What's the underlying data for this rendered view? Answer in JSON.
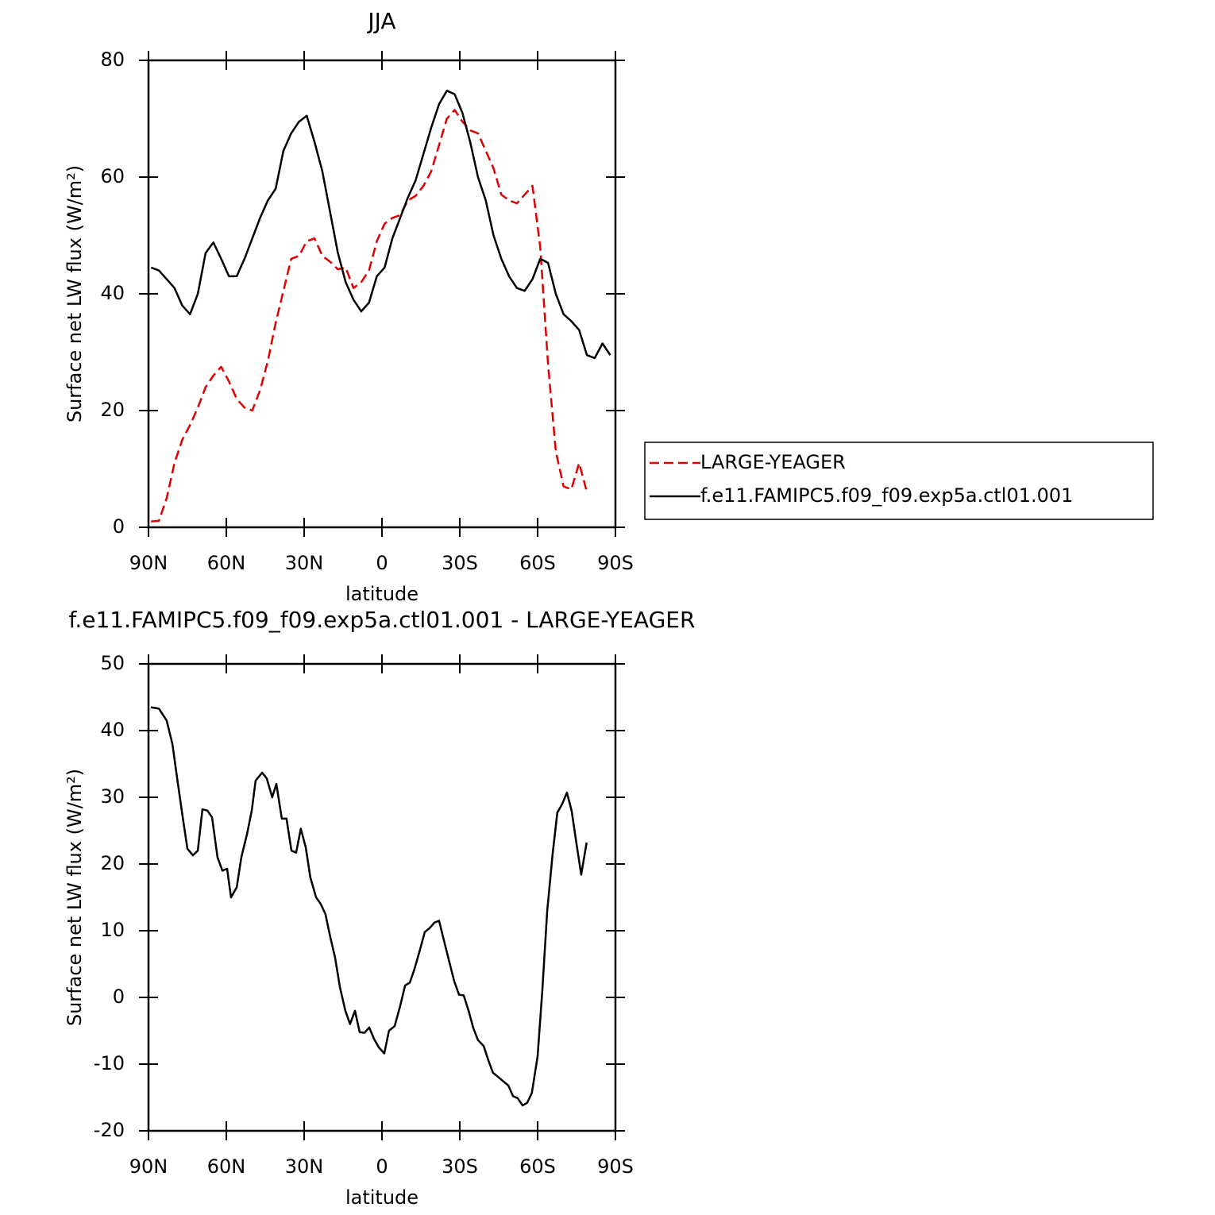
{
  "chart_data": [
    {
      "type": "line",
      "title": "JJA",
      "xlabel": "latitude",
      "ylabel": "Surface net LW flux (W/m²)",
      "xlim": [
        90,
        -90
      ],
      "ylim": [
        0,
        80
      ],
      "xticks": [
        {
          "value": 90,
          "label": "90N"
        },
        {
          "value": 60,
          "label": "60N"
        },
        {
          "value": 30,
          "label": "30N"
        },
        0,
        {
          "value": -30,
          "label": "30S"
        },
        {
          "value": -60,
          "label": "60S"
        },
        {
          "value": -90,
          "label": "90S"
        }
      ],
      "yticks": [
        0,
        20,
        40,
        60,
        80
      ],
      "legend": "right",
      "x": [
        89,
        86,
        83,
        80,
        77,
        74,
        71,
        68,
        65,
        62,
        59,
        56,
        53,
        50,
        47,
        44,
        41,
        38,
        35,
        32,
        29,
        26,
        23,
        20,
        17,
        14,
        11,
        8,
        5,
        2,
        -1,
        -4,
        -7,
        -10,
        -13,
        -16,
        -19,
        -22,
        -25,
        -28,
        -31,
        -34,
        -37,
        -40,
        -43,
        -46,
        -49,
        -52,
        -55,
        -58,
        -61,
        -64,
        -67,
        -70,
        -73,
        -76,
        -79,
        -82,
        -85,
        -88
      ],
      "series": [
        {
          "name": "LARGE-YEAGER",
          "color": "#e00000",
          "linestyle": "dashed",
          "values": [
            1,
            1.1,
            5,
            11,
            15,
            17.5,
            20.5,
            24,
            26,
            27.5,
            25,
            22,
            20.5,
            20,
            23.5,
            28.5,
            35,
            40.5,
            46,
            46.5,
            49,
            49.5,
            46.5,
            45.5,
            44.2,
            44.5,
            41,
            42,
            44,
            49,
            52,
            53,
            53.5,
            56,
            56.8,
            58.5,
            61,
            65.5,
            70,
            71.5,
            69.5,
            68,
            67.5,
            64.5,
            61.5,
            57,
            56,
            55.5,
            57,
            58.5,
            48,
            28,
            13,
            7,
            6.5,
            11,
            6,
            null,
            null,
            null
          ]
        },
        {
          "name": "f.e11.FAMIPC5.f09_f09.exp5a.ctl01.001",
          "color": "#000000",
          "linestyle": "solid",
          "values": [
            44.5,
            44,
            42.5,
            41,
            38,
            36.5,
            40,
            47,
            48.8,
            46,
            43,
            43,
            46,
            49.5,
            53,
            56,
            58,
            64.5,
            67.5,
            69.5,
            70.5,
            66,
            61,
            54,
            47,
            42,
            39,
            37,
            38.5,
            43,
            44.5,
            49.5,
            53,
            56.5,
            59.5,
            64,
            68.5,
            72.5,
            74.8,
            74.2,
            71,
            66,
            60,
            56,
            50,
            46,
            43,
            41,
            40.5,
            42.5,
            46,
            45.3,
            40,
            36.5,
            35.3,
            33.8,
            29.5,
            29,
            31.5,
            29.5
          ]
        }
      ]
    },
    {
      "type": "line",
      "title": "f.e11.FAMIPC5.f09_f09.exp5a.ctl01.001 - LARGE-YEAGER",
      "xlabel": "latitude",
      "ylabel": "Surface net LW flux (W/m²)",
      "xlim": [
        90,
        -90
      ],
      "ylim": [
        -20,
        50
      ],
      "xticks": [
        {
          "value": 90,
          "label": "90N"
        },
        {
          "value": 60,
          "label": "60N"
        },
        {
          "value": 30,
          "label": "30N"
        },
        0,
        {
          "value": -30,
          "label": "30S"
        },
        {
          "value": -60,
          "label": "60S"
        },
        {
          "value": -90,
          "label": "90S"
        }
      ],
      "yticks": [
        -20,
        -10,
        0,
        10,
        20,
        30,
        40,
        50
      ],
      "color": "#000000",
      "x": [
        89.1,
        86,
        83,
        80.8,
        79,
        76.8,
        75,
        72.9,
        71,
        69.2,
        67.3,
        65.5,
        63.4,
        61.5,
        59.7,
        58.2,
        56,
        54.2,
        52,
        50.2,
        48.7,
        46.2,
        44.4,
        42.3,
        40.7,
        38.6,
        36.8,
        34.9,
        33.1,
        31.3,
        29.4,
        27.6,
        25.4,
        23.6,
        21.8,
        19.9,
        18.1,
        16.2,
        14.1,
        12.3,
        10.4,
        8.6,
        6.7,
        4.9,
        3.1,
        1.2,
        -0.9,
        -2.7,
        -4.9,
        -7,
        -8.9,
        -10.7,
        -12.5,
        -14.7,
        -16.5,
        -18.4,
        -20.2,
        -22,
        -23.9,
        -25.7,
        -27.8,
        -29.7,
        -31.5,
        -33.4,
        -35.2,
        -37,
        -39.2,
        -41,
        -42.8,
        -45,
        -46.8,
        -48.7,
        -50.5,
        -52.3,
        -54.2,
        -56,
        -57.8,
        -60,
        -61.8,
        -63.7,
        -65.8,
        -67.6,
        -69.5,
        -71.3,
        -73.1,
        -75,
        -76.8,
        -78.9
      ],
      "values": [
        43.5,
        43.3,
        41.5,
        38,
        33,
        27,
        22.3,
        21.3,
        22,
        28.2,
        28,
        27,
        21,
        19,
        19.3,
        15,
        16.5,
        21,
        24.5,
        28,
        32.5,
        33.7,
        32.8,
        30,
        32,
        26.8,
        26.8,
        22,
        21.7,
        25.3,
        22.5,
        18,
        15,
        14,
        12.5,
        9,
        6,
        1.5,
        -2,
        -4,
        -2,
        -5.2,
        -5.3,
        -4.5,
        -6.2,
        -7.5,
        -8.4,
        -5,
        -4.3,
        -1.3,
        1.8,
        2.2,
        4.2,
        7.2,
        9.8,
        10.4,
        11.2,
        11.5,
        8.5,
        5.7,
        2.5,
        0.4,
        0.3,
        -2,
        -4.6,
        -6.4,
        -7.3,
        -9.4,
        -11.3,
        -12,
        -12.6,
        -13.2,
        -14.8,
        -15.1,
        -16.2,
        -15.8,
        -14.3,
        -8.8,
        1,
        13,
        21.5,
        27.7,
        29,
        30.7,
        28,
        23,
        18.4,
        23.2
      ]
    }
  ]
}
